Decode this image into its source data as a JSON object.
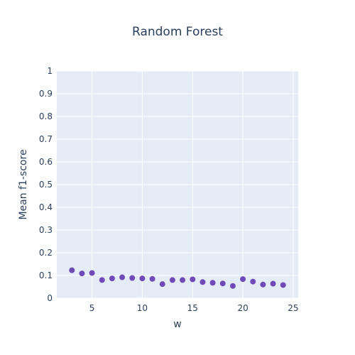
{
  "chart_data": {
    "type": "scatter",
    "title": "Random Forest",
    "xlabel": "w",
    "ylabel": "Mean f1-score",
    "xlim": [
      1.5,
      25.5
    ],
    "ylim": [
      0,
      1
    ],
    "xticks": [
      5,
      10,
      15,
      20,
      25
    ],
    "yticks": [
      0,
      0.1,
      0.2,
      0.3,
      0.4,
      0.5,
      0.6,
      0.7,
      0.8,
      0.9,
      1
    ],
    "ytick_labels": [
      "0",
      "0.1",
      "0.2",
      "0.3",
      "0.4",
      "0.5",
      "0.6",
      "0.7",
      "0.8",
      "0.9",
      "1"
    ],
    "grid": true,
    "series": [
      {
        "color": "#6f4bb8",
        "x": [
          3,
          4,
          5,
          6,
          7,
          8,
          9,
          10,
          11,
          12,
          13,
          14,
          15,
          16,
          17,
          18,
          19,
          20,
          21,
          22,
          23,
          24
        ],
        "y": [
          0.123,
          0.109,
          0.111,
          0.08,
          0.087,
          0.092,
          0.089,
          0.087,
          0.085,
          0.062,
          0.08,
          0.08,
          0.083,
          0.071,
          0.068,
          0.065,
          0.054,
          0.084,
          0.073,
          0.06,
          0.064,
          0.058
        ]
      }
    ],
    "colors": {
      "plot_bg": "#e5ecf6",
      "grid": "#ffffff",
      "text": "#2a3f5f"
    }
  }
}
